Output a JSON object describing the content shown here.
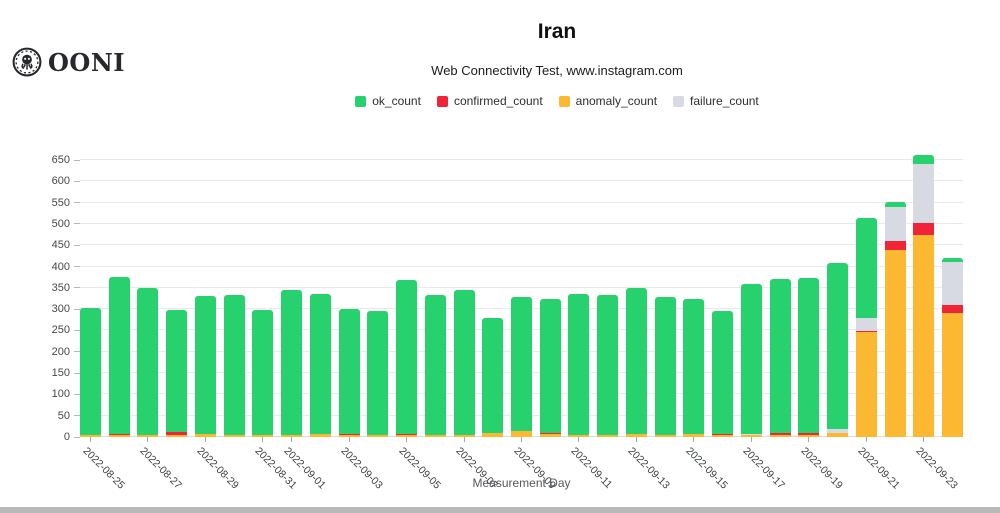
{
  "header": {
    "logo_text": "OONI",
    "title": "Iran",
    "subtitle": "Web Connectivity Test, www.instagram.com"
  },
  "legend": [
    {
      "label": "ok_count",
      "color": "#27d26e"
    },
    {
      "label": "confirmed_count",
      "color": "#ef2438"
    },
    {
      "label": "anomaly_count",
      "color": "#fcb831"
    },
    {
      "label": "failure_count",
      "color": "#d7dae2"
    }
  ],
  "chart_data": {
    "type": "bar",
    "stacked": true,
    "title": "Iran",
    "subtitle": "Web Connectivity Test, www.instagram.com",
    "xlabel": "Measurement Day",
    "ylabel": "",
    "ylim": [
      0,
      650
    ],
    "y_ticks": [
      0,
      50,
      100,
      150,
      200,
      250,
      300,
      350,
      400,
      450,
      500,
      550,
      600,
      650
    ],
    "grid": true,
    "legend_position": "top",
    "categories": [
      "2022-08-25",
      "2022-08-26",
      "2022-08-27",
      "2022-08-28",
      "2022-08-29",
      "2022-08-30",
      "2022-08-31",
      "2022-09-01",
      "2022-09-02",
      "2022-09-03",
      "2022-09-04",
      "2022-09-05",
      "2022-09-06",
      "2022-09-07",
      "2022-09-08",
      "2022-09-09",
      "2022-09-10",
      "2022-09-11",
      "2022-09-12",
      "2022-09-13",
      "2022-09-14",
      "2022-09-15",
      "2022-09-16",
      "2022-09-17",
      "2022-09-18",
      "2022-09-19",
      "2022-09-20",
      "2022-09-21",
      "2022-09-22",
      "2022-09-23",
      "2022-09-24"
    ],
    "x_tick_indices": [
      0,
      2,
      4,
      6,
      7,
      9,
      11,
      13,
      15,
      17,
      19,
      21,
      23,
      25,
      27,
      29
    ],
    "x_tick_labels": [
      "2022-08-25",
      "2022-08-27",
      "2022-08-29",
      "2022-08-31",
      "2022-09-01",
      "2022-09-03",
      "2022-09-05",
      "2022-09-07",
      "2022-09-09",
      "2022-09-11",
      "2022-09-13",
      "2022-09-15",
      "2022-09-17",
      "2022-09-19",
      "2022-09-21",
      "2022-09-23"
    ],
    "stack_order_bottom_to_top": [
      "anomaly_count",
      "confirmed_count",
      "failure_count",
      "ok_count"
    ],
    "series": [
      {
        "name": "ok_count",
        "color": "#27d26e",
        "values": [
          298,
          368,
          345,
          288,
          323,
          328,
          293,
          340,
          330,
          293,
          292,
          361,
          329,
          341,
          270,
          316,
          313,
          331,
          328,
          343,
          323,
          317,
          288,
          352,
          362,
          362,
          389,
          236,
          12,
          21,
          9
        ]
      },
      {
        "name": "confirmed_count",
        "color": "#ef2438",
        "values": [
          0,
          2,
          1,
          6,
          0,
          0,
          0,
          0,
          0,
          2,
          0,
          3,
          0,
          0,
          0,
          0,
          2,
          0,
          0,
          0,
          0,
          0,
          3,
          0,
          4,
          6,
          0,
          2,
          22,
          30,
          20
        ]
      },
      {
        "name": "anomaly_count",
        "color": "#fcb831",
        "values": [
          4,
          5,
          4,
          5,
          7,
          5,
          5,
          5,
          6,
          5,
          4,
          5,
          4,
          4,
          10,
          13,
          8,
          5,
          5,
          7,
          5,
          6,
          5,
          4,
          5,
          4,
          10,
          246,
          438,
          473,
          290
        ]
      },
      {
        "name": "failure_count",
        "color": "#d7dae2",
        "values": [
          0,
          0,
          0,
          0,
          0,
          0,
          0,
          0,
          0,
          0,
          0,
          0,
          0,
          0,
          0,
          0,
          0,
          0,
          0,
          0,
          0,
          0,
          0,
          2,
          0,
          0,
          10,
          31,
          80,
          137,
          100
        ]
      }
    ]
  }
}
